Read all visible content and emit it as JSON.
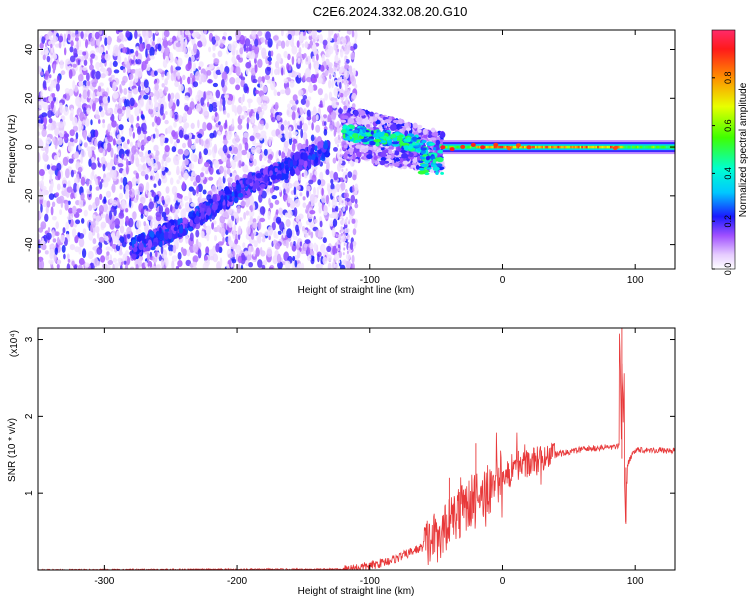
{
  "title": "C2E6.2024.332.08.20.G10",
  "chart_data": [
    {
      "type": "heatmap",
      "xlabel": "Height of straight line (km)",
      "ylabel": "Frequency (Hz)",
      "xlim": [
        -350,
        130
      ],
      "ylim": [
        -50,
        48
      ],
      "xticks": [
        -300,
        -200,
        -100,
        0,
        100
      ],
      "yticks": [
        -40,
        -20,
        0,
        20,
        40
      ],
      "colorbar": {
        "label": "Normalized spectral amplitude",
        "range": [
          0,
          1
        ],
        "ticks": [
          0.0,
          0.2,
          0.4,
          0.6,
          0.8
        ],
        "tick_labels": [
          "0.0",
          "0.2",
          "0.4",
          "0.6",
          "0.8"
        ]
      },
      "features": {
        "noise_region_x": [
          -350,
          -120
        ],
        "chirp_track": [
          [
            -280,
            -42
          ],
          [
            -240,
            -32
          ],
          [
            -200,
            -18
          ],
          [
            -160,
            -8
          ],
          [
            -130,
            0
          ]
        ],
        "transition_x": [
          -120,
          -45
        ],
        "carrier_line": {
          "x": [
            -45,
            130
          ],
          "frequency": 0,
          "peak_x": [
            -20,
            90
          ]
        }
      }
    },
    {
      "type": "line",
      "xlabel": "Height of straight line (km)",
      "ylabel": "SNR (10 * v/v)",
      "scale_label": "(x10⁴)",
      "xlim": [
        -350,
        130
      ],
      "ylim": [
        0,
        3.15
      ],
      "xticks": [
        -300,
        -200,
        -100,
        0,
        100
      ],
      "yticks": [
        1,
        2,
        3
      ],
      "series": [
        {
          "color": "#e8393a",
          "envelope": [
            [
              -350,
              0.0
            ],
            [
              -120,
              0.01
            ],
            [
              -100,
              0.05
            ],
            [
              -80,
              0.15
            ],
            [
              -60,
              0.3
            ],
            [
              -45,
              0.5
            ],
            [
              -30,
              0.8
            ],
            [
              -15,
              1.0
            ],
            [
              0,
              1.2
            ],
            [
              20,
              1.4
            ],
            [
              40,
              1.5
            ],
            [
              60,
              1.57
            ],
            [
              80,
              1.6
            ],
            [
              88,
              1.6
            ],
            [
              92,
              1.3
            ],
            [
              100,
              1.57
            ],
            [
              130,
              1.55
            ]
          ],
          "spikes": [
            [
              -40,
              1.2
            ],
            [
              -20,
              1.65
            ],
            [
              12,
              1.55
            ],
            [
              90,
              3.2
            ],
            [
              93,
              0.6
            ]
          ]
        }
      ]
    }
  ]
}
